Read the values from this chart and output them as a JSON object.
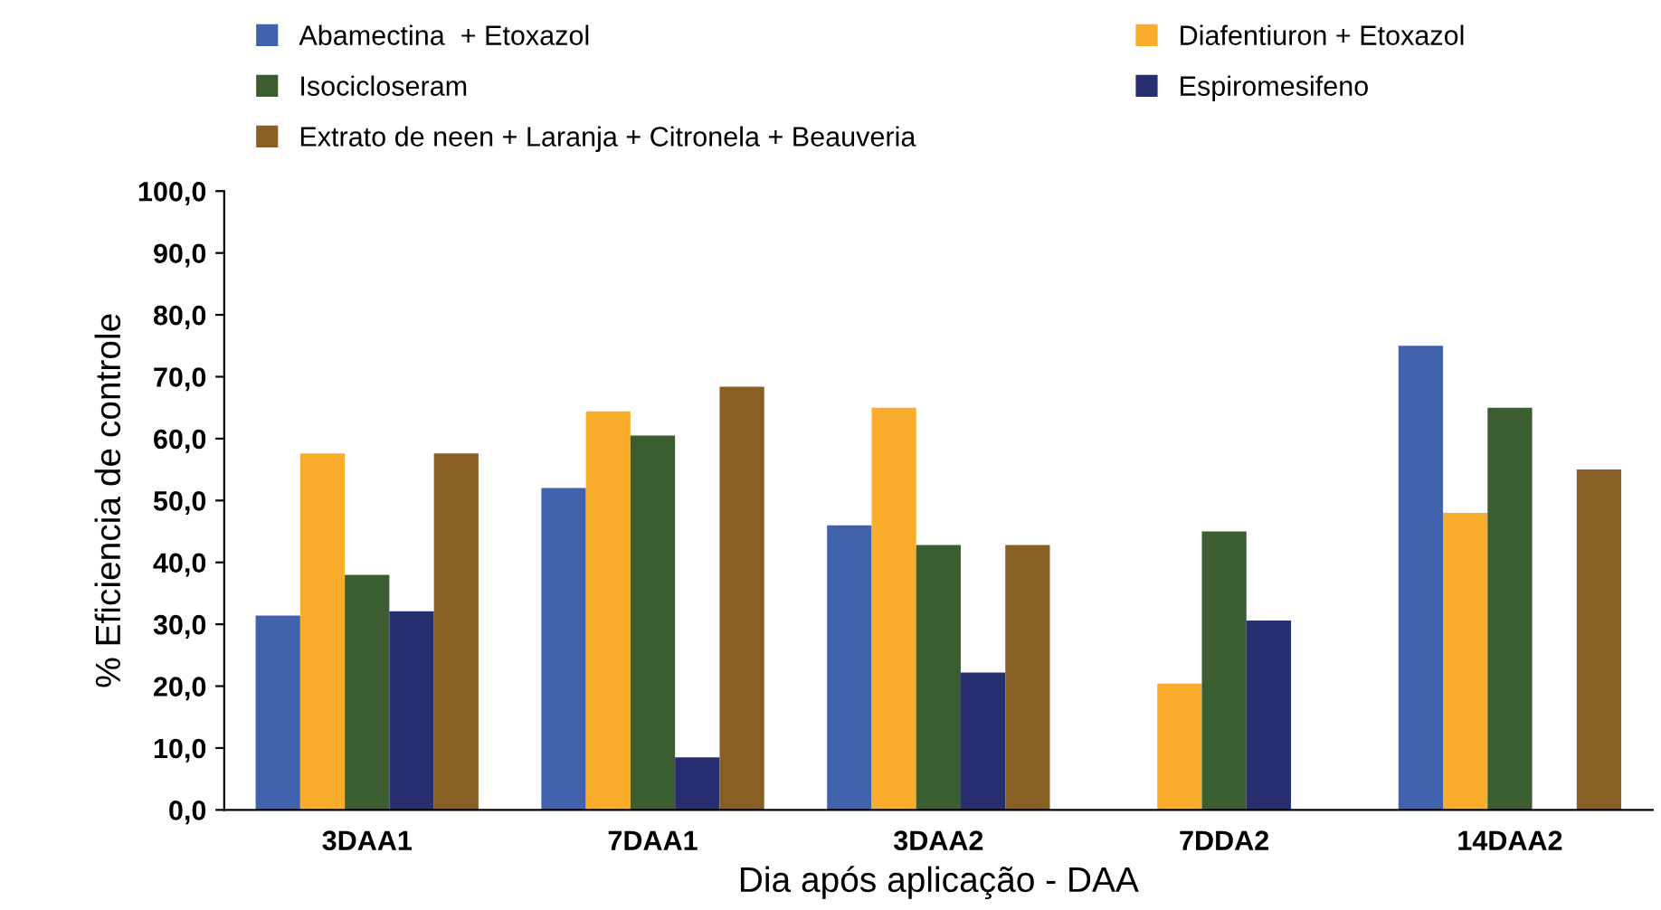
{
  "chart_data": {
    "type": "bar",
    "xlabel": "Dia após aplicação - DAA",
    "ylabel": "% Eficiencia de controle",
    "categories": [
      "3DAA1",
      "7DAA1",
      "3DAA2",
      "7DDA2",
      "14DAA2"
    ],
    "series": [
      {
        "name": "Abamectina  + Etoxazol",
        "color": "#4163ae",
        "values": [
          31.4,
          52.0,
          46.0,
          null,
          75.0
        ]
      },
      {
        "name": "Diafentiuron + Etoxazol",
        "color": "#f9ad2b",
        "values": [
          57.6,
          64.4,
          65.0,
          20.4,
          48.0
        ]
      },
      {
        "name": "Isocicloseram",
        "color": "#3a5e30",
        "values": [
          38.0,
          60.5,
          42.8,
          45.0,
          65.0
        ]
      },
      {
        "name": "Espiromesifeno",
        "color": "#282f70",
        "values": [
          32.1,
          8.5,
          22.2,
          30.6,
          null
        ]
      },
      {
        "name": "Extrato de neen + Laranja + Citronela + Beauveria",
        "color": "#8a5f24",
        "values": [
          57.6,
          68.4,
          42.8,
          null,
          55.0
        ]
      }
    ],
    "ylim": [
      0,
      100
    ],
    "yticks": [
      {
        "value": 0,
        "label": "0,0"
      },
      {
        "value": 10,
        "label": "10,0"
      },
      {
        "value": 20,
        "label": "20,0"
      },
      {
        "value": 30,
        "label": "30,0"
      },
      {
        "value": 40,
        "label": "40,0"
      },
      {
        "value": 50,
        "label": "50,0"
      },
      {
        "value": 60,
        "label": "60,0"
      },
      {
        "value": 70,
        "label": "70,0"
      },
      {
        "value": 80,
        "label": "80,0"
      },
      {
        "value": 90,
        "label": "90,0"
      },
      {
        "value": 100,
        "label": "100,0"
      }
    ],
    "legend": "top",
    "grid": false
  }
}
